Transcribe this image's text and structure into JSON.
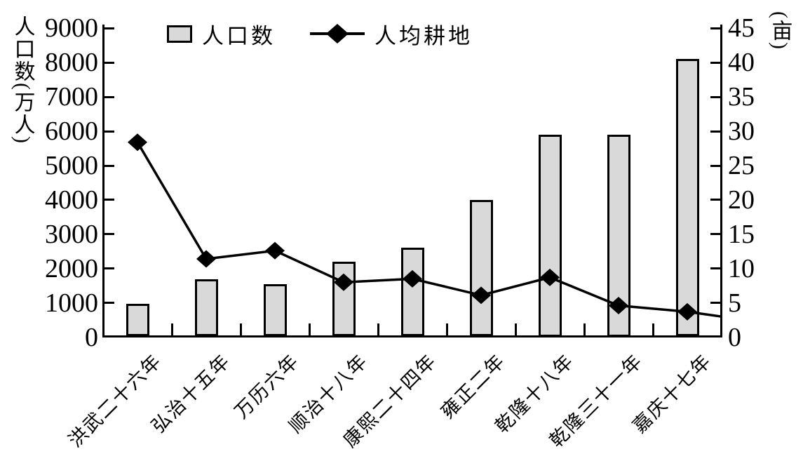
{
  "chart_data": {
    "type": "bar+line",
    "title": "",
    "categories": [
      "洪武二十六年",
      "弘治十五年",
      "万历六年",
      "顺治十八年",
      "康熙二十四年",
      "雍正二年",
      "乾隆十八年",
      "乾隆三十一年",
      "嘉庆十七年"
    ],
    "series": [
      {
        "name": "人口数",
        "type": "bar",
        "axis": "left",
        "values": [
          980,
          1690,
          1550,
          2200,
          2600,
          4000,
          5900,
          5900,
          8100
        ]
      },
      {
        "name": "人均耕地",
        "type": "line",
        "axis": "right",
        "values": [
          28.4,
          11.4,
          12.6,
          8.0,
          8.5,
          6.1,
          8.7,
          4.6,
          3.7
        ],
        "line_end_value": 3.0
      }
    ],
    "left_axis": {
      "title": "人口数(万人)",
      "min": 0,
      "max": 9000,
      "tick_step": 1000
    },
    "right_axis": {
      "title": "(亩)",
      "min": 0,
      "max": 45,
      "tick_step": 5
    },
    "legend": {
      "position": "top",
      "entries": [
        "人口数",
        "人均耕地"
      ]
    },
    "grid": false,
    "colors": {
      "background": "#ffffff",
      "bar_fill": "#d9d9d9",
      "bar_border": "#000000",
      "line": "#000000",
      "marker": "#000000",
      "text": "#000000"
    }
  }
}
